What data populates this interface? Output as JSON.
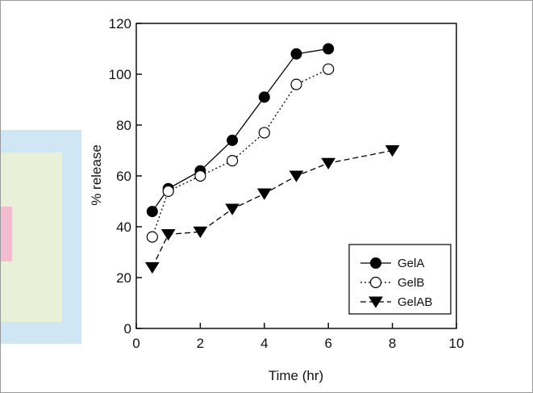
{
  "chart_data": {
    "type": "line",
    "xlabel": "Time (hr)",
    "ylabel": "% release",
    "xlim": [
      0,
      10
    ],
    "ylim": [
      0,
      120
    ],
    "xticks": [
      0,
      2,
      4,
      6,
      8,
      10
    ],
    "yticks": [
      0,
      20,
      40,
      60,
      80,
      100,
      120
    ],
    "grid": false,
    "legend_position": "bottom-right",
    "series": [
      {
        "name": "GelA",
        "marker": "filled-circle",
        "line_style": "solid",
        "x": [
          0.5,
          1,
          2,
          3,
          4,
          5,
          6
        ],
        "y": [
          46,
          55,
          62,
          74,
          91,
          108,
          110
        ]
      },
      {
        "name": "GelB",
        "marker": "open-circle",
        "line_style": "dotted",
        "x": [
          0.5,
          1,
          2,
          3,
          4,
          5,
          6
        ],
        "y": [
          36,
          54,
          60,
          66,
          77,
          96,
          102
        ]
      },
      {
        "name": "GelAB",
        "marker": "filled-down-triangle",
        "line_style": "dashed",
        "x": [
          0.5,
          1,
          2,
          3,
          4,
          5,
          6,
          8
        ],
        "y": [
          24,
          37,
          38,
          47,
          53,
          60,
          65,
          70
        ]
      }
    ]
  },
  "colors": {
    "ink": "#000000",
    "background": "#ffffff",
    "bg_blue": "#cfe6f5",
    "bg_green": "#e8f0d8",
    "bg_pink": "#f3bcd0"
  }
}
